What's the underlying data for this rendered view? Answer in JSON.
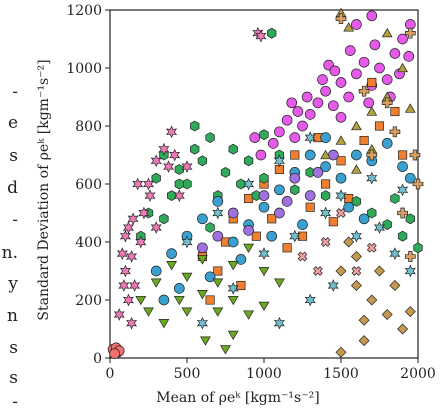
{
  "page_fragments": {
    "lines": [
      "-",
      "e",
      "s",
      "d",
      "-",
      "n.",
      "y",
      "n",
      "s",
      "s",
      "-"
    ]
  },
  "chart_data": {
    "type": "scatter",
    "title": "",
    "xlabel": "Mean of ρeᵏ [kgm⁻¹s⁻²]",
    "ylabel": "Standard Deviation of ρeᵏ [kgm⁻¹s⁻²]",
    "xlim": [
      0,
      2000
    ],
    "ylim": [
      0,
      1200
    ],
    "xticks": [
      "0",
      "500",
      "1000",
      "1500",
      "2000"
    ],
    "yticks": [
      "0",
      "200",
      "400",
      "600",
      "800",
      "1000",
      "1200"
    ],
    "grid": false,
    "legend": "none",
    "series": [
      {
        "marker": "circle",
        "color": "#e55ae8",
        "points": [
          [
            1350,
            880
          ],
          [
            1400,
            920
          ],
          [
            1450,
            870
          ],
          [
            1500,
            950
          ],
          [
            1550,
            900
          ],
          [
            1600,
            980
          ],
          [
            1650,
            1020
          ],
          [
            1700,
            940
          ],
          [
            1750,
            1000
          ],
          [
            1800,
            960
          ],
          [
            1850,
            1050
          ],
          [
            1900,
            1100
          ],
          [
            1950,
            1150
          ],
          [
            1300,
            840
          ],
          [
            1250,
            800
          ],
          [
            1200,
            760
          ],
          [
            1150,
            820
          ],
          [
            1100,
            780
          ],
          [
            1600,
            1150
          ],
          [
            1700,
            1180
          ],
          [
            1500,
            830
          ],
          [
            1420,
            1010
          ],
          [
            1380,
            960
          ],
          [
            1720,
            1080
          ],
          [
            1820,
            900
          ],
          [
            1880,
            980
          ],
          [
            1940,
            1040
          ],
          [
            1680,
            880
          ],
          [
            1560,
            1060
          ],
          [
            1460,
            990
          ],
          [
            1280,
            900
          ],
          [
            1220,
            850
          ],
          [
            1060,
            740
          ],
          [
            1180,
            880
          ],
          [
            980,
            700
          ],
          [
            940,
            760
          ],
          [
            30,
            30
          ],
          [
            50,
            20
          ]
        ]
      },
      {
        "marker": "circle",
        "color": "#f07070",
        "points": [
          [
            20,
            30
          ],
          [
            40,
            35
          ],
          [
            60,
            25
          ],
          [
            30,
            15
          ]
        ]
      },
      {
        "marker": "square",
        "color": "#f08030",
        "points": [
          [
            800,
            480
          ],
          [
            900,
            550
          ],
          [
            1000,
            600
          ],
          [
            1100,
            650
          ],
          [
            1200,
            700
          ],
          [
            1300,
            520
          ],
          [
            1400,
            600
          ],
          [
            1500,
            680
          ],
          [
            950,
            420
          ],
          [
            1050,
            480
          ],
          [
            600,
            350
          ],
          [
            700,
            300
          ],
          [
            850,
            250
          ],
          [
            1150,
            380
          ],
          [
            1250,
            420
          ],
          [
            1650,
            750
          ],
          [
            1750,
            800
          ],
          [
            1850,
            850
          ],
          [
            1700,
            950
          ],
          [
            1900,
            700
          ],
          [
            1550,
            550
          ],
          [
            1350,
            760
          ],
          [
            1450,
            470
          ],
          [
            750,
            400
          ],
          [
            650,
            200
          ]
        ]
      },
      {
        "marker": "hexagon",
        "color": "#2eaa5a",
        "points": [
          [
            250,
            500
          ],
          [
            300,
            620
          ],
          [
            350,
            700
          ],
          [
            400,
            560
          ],
          [
            450,
            650
          ],
          [
            500,
            600
          ],
          [
            550,
            720
          ],
          [
            600,
            680
          ],
          [
            650,
            760
          ],
          [
            700,
            560
          ],
          [
            750,
            640
          ],
          [
            800,
            720
          ],
          [
            850,
            600
          ],
          [
            900,
            680
          ],
          [
            950,
            560
          ],
          [
            1000,
            620
          ],
          [
            1100,
            700
          ],
          [
            1200,
            580
          ],
          [
            1300,
            640
          ],
          [
            1400,
            560
          ],
          [
            1500,
            620
          ],
          [
            1600,
            540
          ],
          [
            1700,
            500
          ],
          [
            1800,
            460
          ],
          [
            1900,
            420
          ],
          [
            2000,
            380
          ],
          [
            1950,
            480
          ],
          [
            1850,
            550
          ],
          [
            550,
            800
          ],
          [
            450,
            600
          ],
          [
            200,
            420
          ],
          [
            350,
            480
          ],
          [
            650,
            450
          ],
          [
            1050,
            1120
          ],
          [
            1000,
            770
          ]
        ]
      },
      {
        "marker": "circle",
        "color": "#3aa0d0",
        "points": [
          [
            300,
            300
          ],
          [
            400,
            360
          ],
          [
            500,
            420
          ],
          [
            600,
            480
          ],
          [
            700,
            540
          ],
          [
            800,
            400
          ],
          [
            900,
            460
          ],
          [
            1000,
            520
          ],
          [
            1100,
            580
          ],
          [
            1200,
            640
          ],
          [
            1300,
            700
          ],
          [
            1400,
            660
          ],
          [
            1500,
            620
          ],
          [
            1600,
            700
          ],
          [
            1700,
            680
          ],
          [
            1800,
            740
          ],
          [
            1900,
            660
          ],
          [
            1950,
            620
          ],
          [
            1400,
            760
          ],
          [
            1550,
            520
          ],
          [
            1650,
            480
          ],
          [
            1250,
            460
          ],
          [
            1050,
            420
          ],
          [
            850,
            340
          ],
          [
            650,
            280
          ],
          [
            450,
            240
          ],
          [
            350,
            200
          ]
        ]
      },
      {
        "marker": "circle",
        "color": "#a070e0",
        "points": [
          [
            600,
            380
          ],
          [
            700,
            420
          ],
          [
            800,
            500
          ],
          [
            900,
            440
          ],
          [
            1000,
            560
          ],
          [
            1100,
            500
          ],
          [
            1200,
            620
          ],
          [
            1300,
            560
          ],
          [
            1350,
            640
          ],
          [
            1450,
            700
          ],
          [
            1150,
            540
          ]
        ]
      },
      {
        "marker": "triangle-down",
        "color": "#6aaa20",
        "points": [
          [
            200,
            200
          ],
          [
            300,
            260
          ],
          [
            400,
            320
          ],
          [
            500,
            280
          ],
          [
            600,
            340
          ],
          [
            700,
            260
          ],
          [
            800,
            320
          ],
          [
            900,
            380
          ],
          [
            1000,
            300
          ],
          [
            1100,
            260
          ],
          [
            700,
            160
          ],
          [
            800,
            200
          ],
          [
            600,
            220
          ],
          [
            500,
            160
          ],
          [
            450,
            200
          ],
          [
            350,
            120
          ],
          [
            250,
            160
          ],
          [
            900,
            150
          ],
          [
            1000,
            180
          ],
          [
            800,
            80
          ],
          [
            750,
            30
          ],
          [
            620,
            60
          ]
        ]
      },
      {
        "marker": "triangle-up",
        "color": "#b0a040",
        "points": [
          [
            1400,
            700
          ],
          [
            1500,
            750
          ],
          [
            1600,
            800
          ],
          [
            1700,
            850
          ],
          [
            1800,
            900
          ],
          [
            1900,
            1000
          ],
          [
            1500,
            1190
          ],
          [
            1550,
            1140
          ],
          [
            1800,
            1120
          ],
          [
            1700,
            720
          ],
          [
            1950,
            860
          ],
          [
            1600,
            650
          ]
        ]
      },
      {
        "marker": "diamond",
        "color": "#c49a50",
        "points": [
          [
            1500,
            300
          ],
          [
            1600,
            250
          ],
          [
            1700,
            200
          ],
          [
            1800,
            150
          ],
          [
            1900,
            100
          ],
          [
            1600,
            350
          ],
          [
            1750,
            300
          ],
          [
            1850,
            250
          ],
          [
            1950,
            160
          ],
          [
            1550,
            400
          ],
          [
            1650,
            130
          ],
          [
            1500,
            20
          ],
          [
            1650,
            60
          ]
        ]
      },
      {
        "marker": "plus",
        "color": "#d8a060",
        "points": [
          [
            1500,
            1170
          ],
          [
            1650,
            920
          ],
          [
            1800,
            880
          ],
          [
            1900,
            500
          ],
          [
            1950,
            350
          ],
          [
            1700,
            700
          ],
          [
            1850,
            780
          ],
          [
            1980,
            700
          ],
          [
            2000,
            600
          ],
          [
            1950,
            1120
          ]
        ]
      },
      {
        "marker": "star",
        "color": "#70c0d0",
        "points": [
          [
            500,
            400
          ],
          [
            700,
            500
          ],
          [
            900,
            600
          ],
          [
            1100,
            680
          ],
          [
            1300,
            760
          ],
          [
            1500,
            560
          ],
          [
            1700,
            620
          ],
          [
            1900,
            580
          ],
          [
            1750,
            450
          ],
          [
            1600,
            420
          ],
          [
            1850,
            360
          ],
          [
            1950,
            300
          ],
          [
            600,
            120
          ],
          [
            800,
            240
          ],
          [
            1000,
            360
          ],
          [
            1200,
            420
          ],
          [
            1400,
            500
          ],
          [
            1100,
            120
          ],
          [
            1300,
            200
          ],
          [
            1450,
            250
          ]
        ]
      },
      {
        "marker": "star",
        "color": "#ef7ab8",
        "points": [
          [
            150,
            480
          ],
          [
            180,
            600
          ],
          [
            200,
            400
          ],
          [
            220,
            500
          ],
          [
            260,
            560
          ],
          [
            300,
            680
          ],
          [
            350,
            720
          ],
          [
            400,
            780
          ],
          [
            450,
            560
          ],
          [
            120,
            450
          ],
          [
            100,
            420
          ],
          [
            80,
            360
          ],
          [
            100,
            300
          ],
          [
            120,
            200
          ],
          [
            140,
            120
          ],
          [
            90,
            250
          ],
          [
            60,
            150
          ],
          [
            250,
            600
          ],
          [
            420,
            700
          ],
          [
            380,
            660
          ],
          [
            500,
            660
          ],
          [
            300,
            450
          ],
          [
            160,
            250
          ],
          [
            140,
            350
          ],
          [
            960,
            1120
          ],
          [
            980,
            1110
          ]
        ]
      },
      {
        "marker": "cross",
        "color": "#f0a0a0",
        "points": [
          [
            1400,
            400
          ],
          [
            1500,
            500
          ],
          [
            1600,
            300
          ],
          [
            1700,
            380
          ],
          [
            1350,
            300
          ],
          [
            1250,
            350
          ]
        ]
      }
    ]
  }
}
